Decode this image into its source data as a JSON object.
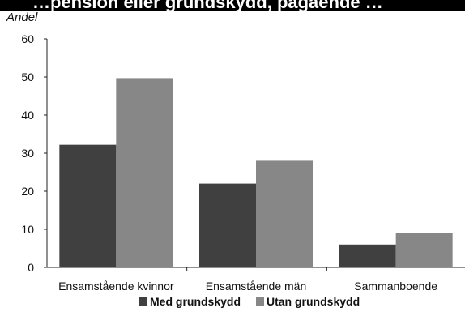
{
  "header_text": "…pension eller grundskydd, pågående …",
  "chart_data": {
    "type": "bar",
    "title": "",
    "ylabel": "Andel",
    "xlabel": "",
    "ylim": [
      0,
      60
    ],
    "yticks": [
      0,
      10,
      20,
      30,
      40,
      50,
      60
    ],
    "categories": [
      "Ensamstående kvinnor",
      "Ensamstående män",
      "Sammanboende"
    ],
    "series": [
      {
        "name": "Med grundskydd",
        "values": [
          32.2,
          22.0,
          6.0
        ],
        "color": "#404040"
      },
      {
        "name": "Utan grundskydd",
        "values": [
          49.7,
          28.0,
          9.0
        ],
        "color": "#878787"
      }
    ],
    "legend_position": "bottom",
    "grid": false
  }
}
